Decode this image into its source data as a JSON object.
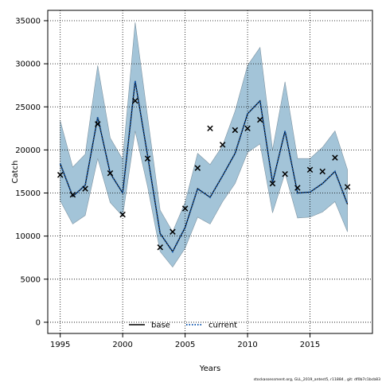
{
  "chart_data": {
    "type": "line",
    "title": "",
    "xlabel": "Years",
    "ylabel": "Catch",
    "xlim": [
      1994,
      2020
    ],
    "ylim": [
      -1300,
      36200
    ],
    "xticks": [
      1995,
      2000,
      2005,
      2010,
      2015
    ],
    "yticks": [
      0,
      5000,
      10000,
      15000,
      20000,
      25000,
      30000,
      35000
    ],
    "grid": true,
    "legend_position": "bottom-center",
    "x": [
      1995,
      1996,
      1997,
      1998,
      1999,
      2000,
      2001,
      2002,
      2003,
      2004,
      2005,
      2006,
      2007,
      2008,
      2009,
      2010,
      2011,
      2012,
      2013,
      2014,
      2015,
      2016,
      2017,
      2018
    ],
    "series": [
      {
        "name": "base",
        "style": "solid",
        "color": "#000000",
        "values": [
          18400,
          14600,
          15900,
          23800,
          17300,
          15000,
          28000,
          19300,
          10300,
          8200,
          11000,
          15500,
          14500,
          17000,
          19600,
          24200,
          25700,
          16200,
          22200,
          15000,
          15100,
          16100,
          17500,
          13700
        ]
      },
      {
        "name": "current",
        "style": "dotted",
        "color": "#1a5fb4",
        "values": [
          18400,
          14600,
          15900,
          23800,
          17300,
          15000,
          28000,
          19300,
          10300,
          8200,
          11000,
          15500,
          14500,
          17000,
          19600,
          24200,
          25700,
          16200,
          22200,
          15000,
          15100,
          16100,
          17500,
          13700
        ]
      }
    ],
    "band": {
      "color": "#a3c4d8",
      "lower": [
        14100,
        11400,
        12400,
        19000,
        13900,
        12300,
        22200,
        15700,
        8200,
        6400,
        8600,
        12200,
        11400,
        14000,
        16100,
        19700,
        20700,
        12700,
        17300,
        12100,
        12200,
        12800,
        14000,
        10500
      ],
      "upper": [
        23400,
        18000,
        19500,
        29800,
        21400,
        18900,
        34800,
        23800,
        13000,
        10500,
        13900,
        19600,
        18300,
        20500,
        24500,
        29800,
        31900,
        20000,
        27900,
        19000,
        19000,
        20300,
        22200,
        17700
      ]
    },
    "observed": {
      "marker": "x",
      "values": [
        17100,
        14800,
        15500,
        23000,
        17300,
        12500,
        25700,
        19000,
        8700,
        10500,
        13200,
        17900,
        22500,
        20600,
        22300,
        22500,
        23500,
        16100,
        17200,
        15600,
        17700,
        17500,
        19100,
        15700
      ]
    }
  },
  "footnote": "stockassessment.org, GLL_2019_antest5, r11884 , git: df0b7c1bcb83"
}
